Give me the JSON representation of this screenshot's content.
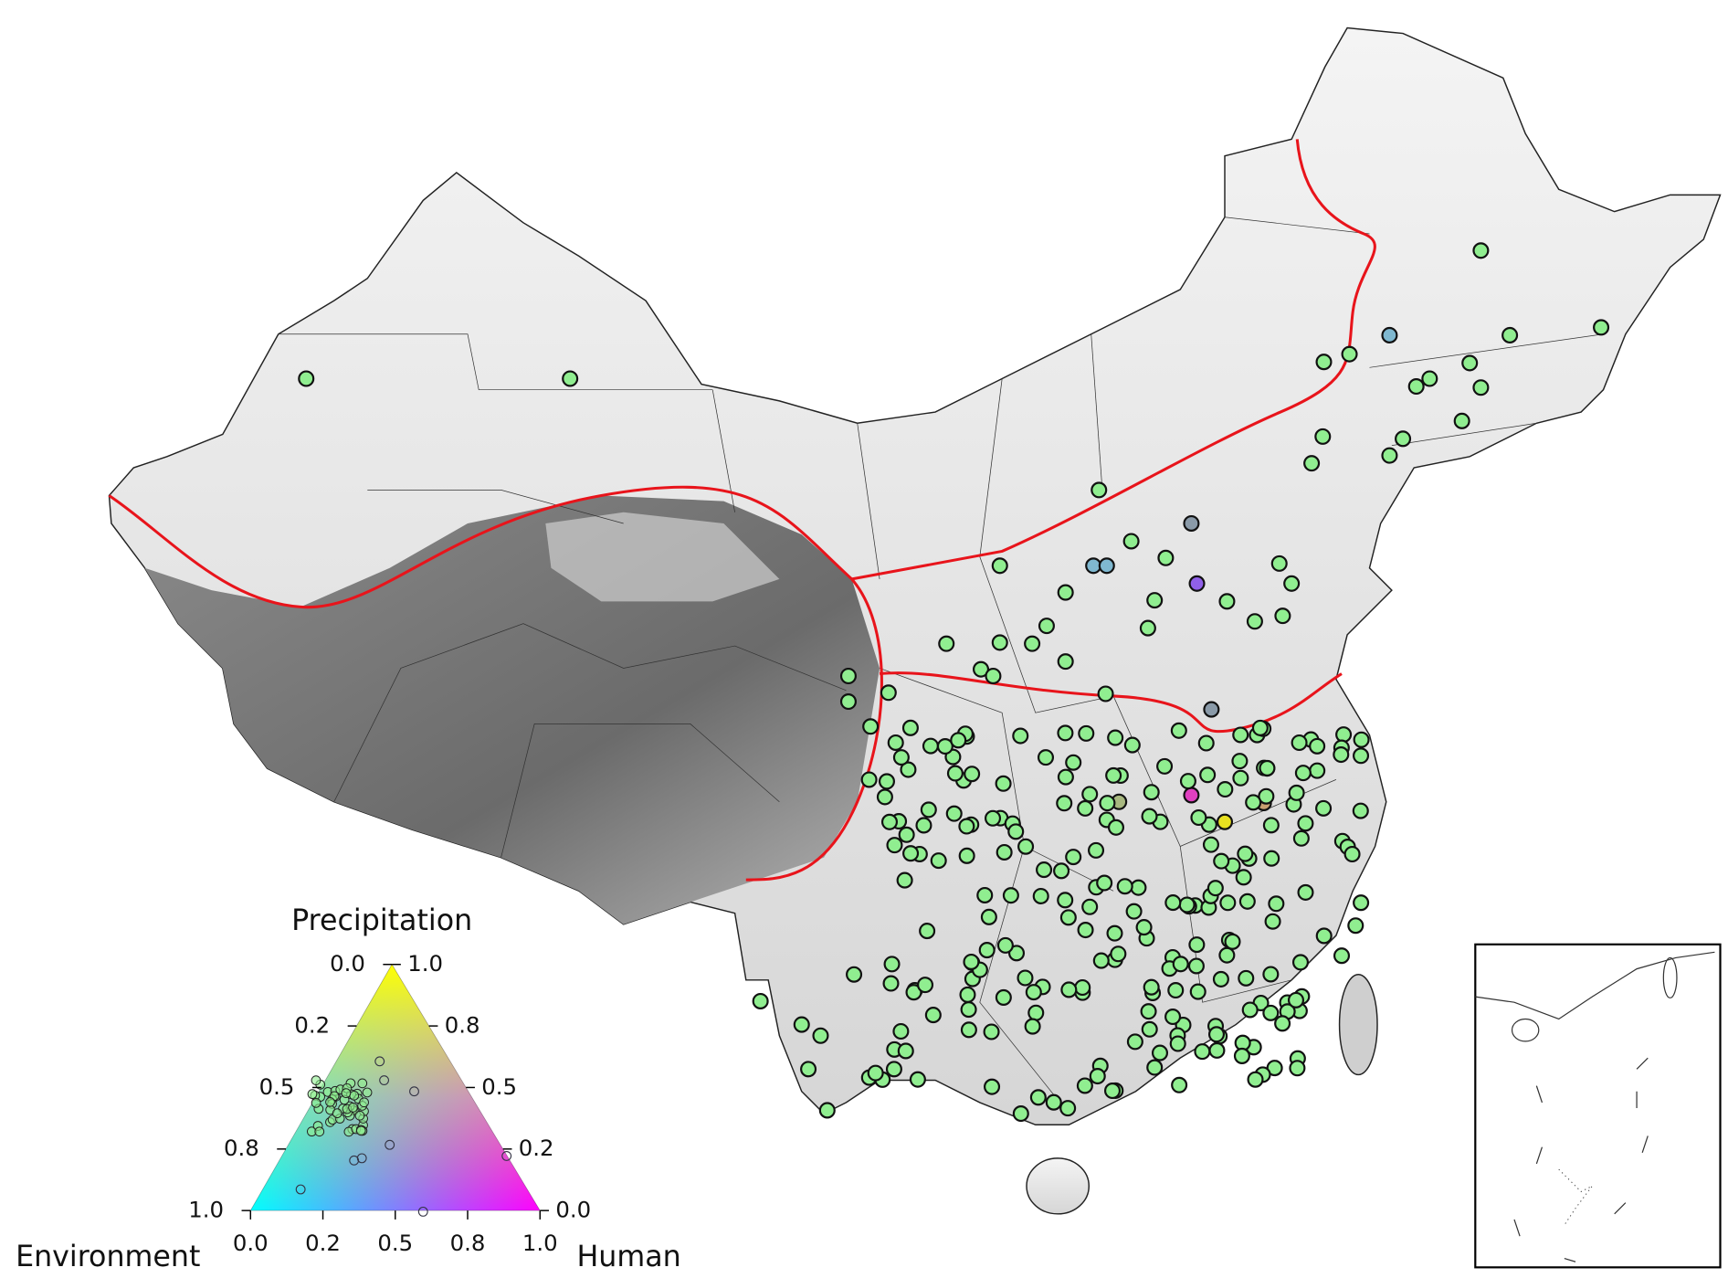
{
  "legend": {
    "title": "Precipitation",
    "left_label": "Environment",
    "right_label": "Human",
    "bottom_ticks": [
      {
        "value": 0,
        "label": "0.0"
      },
      {
        "value": 0.25,
        "label": "0.2"
      },
      {
        "value": 0.5,
        "label": "0.5"
      },
      {
        "value": 0.75,
        "label": "0.8"
      },
      {
        "value": 1,
        "label": "1.0"
      }
    ],
    "left_ticks": [
      {
        "value": 0,
        "label": "0.0"
      },
      {
        "value": 0.25,
        "label": "0.2"
      },
      {
        "value": 0.5,
        "label": "0.5"
      },
      {
        "value": 0.75,
        "label": "0.8"
      },
      {
        "value": 1,
        "label": "1.0"
      }
    ],
    "right_ticks": [
      {
        "value": 0,
        "label": "0.0"
      },
      {
        "value": 0.25,
        "label": "0.2"
      },
      {
        "value": 0.5,
        "label": "0.5"
      },
      {
        "value": 0.75,
        "label": "0.8"
      },
      {
        "value": 1,
        "label": "1.0"
      }
    ]
  }
}
